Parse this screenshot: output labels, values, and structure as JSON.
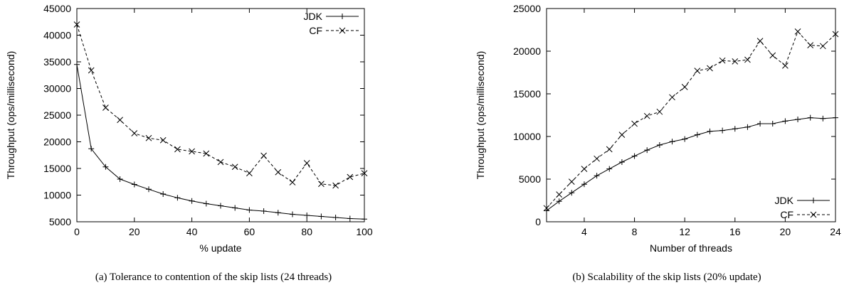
{
  "chart_data": [
    {
      "type": "line",
      "caption": "(a)  Tolerance to contention of the skip lists (24 threads)",
      "xlabel": "% update",
      "ylabel": "Throughput (ops/millisecond)",
      "xlim": [
        0,
        100
      ],
      "ylim": [
        5000,
        45000
      ],
      "xticks": [
        0,
        20,
        40,
        60,
        80,
        100
      ],
      "yticks": [
        5000,
        10000,
        15000,
        20000,
        25000,
        30000,
        35000,
        40000,
        45000
      ],
      "legend": "top-right",
      "x": [
        0,
        5,
        10,
        15,
        20,
        25,
        30,
        35,
        40,
        45,
        50,
        55,
        60,
        65,
        70,
        75,
        80,
        85,
        90,
        95,
        100
      ],
      "series": [
        {
          "name": "JDK",
          "marker": "plus",
          "dash": "solid",
          "values": [
            34500,
            18700,
            15300,
            13000,
            12000,
            11100,
            10200,
            9500,
            8900,
            8400,
            8000,
            7600,
            7200,
            7000,
            6700,
            6400,
            6200,
            6000,
            5800,
            5600,
            5500
          ]
        },
        {
          "name": "CF",
          "marker": "cross",
          "dash": "dashed",
          "values": [
            42000,
            33400,
            26400,
            24100,
            21600,
            20700,
            20300,
            18600,
            18200,
            17800,
            16200,
            15300,
            14100,
            17400,
            14300,
            12400,
            16000,
            12100,
            11800,
            13400,
            14100
          ]
        }
      ]
    },
    {
      "type": "line",
      "caption": "(b)  Scalability of the skip lists (20% update)",
      "xlabel": "Number of threads",
      "ylabel": "Throughput (ops/millisecond)",
      "xlim": [
        1,
        24
      ],
      "ylim": [
        0,
        25000
      ],
      "xticks": [
        4,
        8,
        12,
        16,
        20,
        24
      ],
      "yticks": [
        0,
        5000,
        10000,
        15000,
        20000,
        25000
      ],
      "legend": "bottom-right",
      "x": [
        1,
        2,
        3,
        4,
        5,
        6,
        7,
        8,
        9,
        10,
        11,
        12,
        13,
        14,
        15,
        16,
        17,
        18,
        19,
        20,
        21,
        22,
        23,
        24
      ],
      "series": [
        {
          "name": "JDK",
          "marker": "plus",
          "dash": "solid",
          "values": [
            1300,
            2400,
            3400,
            4400,
            5400,
            6200,
            7000,
            7700,
            8400,
            9000,
            9400,
            9700,
            10200,
            10600,
            10700,
            10900,
            11100,
            11500,
            11500,
            11800,
            12000,
            12200,
            12100,
            12200
          ]
        },
        {
          "name": "CF",
          "marker": "cross",
          "dash": "dashed",
          "values": [
            1600,
            3200,
            4700,
            6200,
            7400,
            8500,
            10200,
            11500,
            12400,
            12900,
            14600,
            15800,
            17700,
            18000,
            18900,
            18800,
            19000,
            21200,
            19500,
            18300,
            22300,
            20700,
            20600,
            22000
          ]
        }
      ]
    }
  ]
}
